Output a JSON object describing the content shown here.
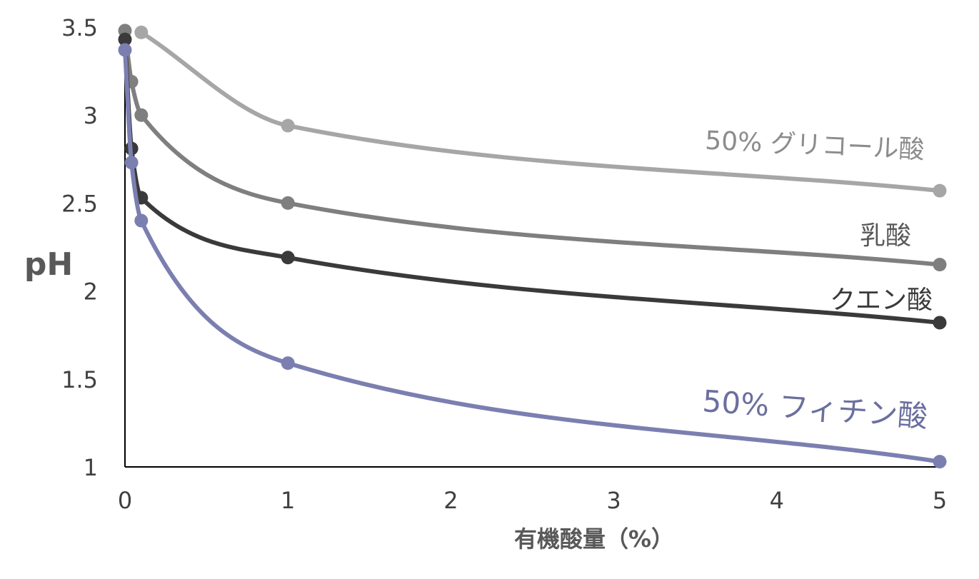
{
  "chart_data": {
    "type": "line",
    "title": "",
    "xlabel": "有機酸量（%）",
    "ylabel": "pH",
    "xlim": [
      0,
      5
    ],
    "ylim": [
      1,
      3.5
    ],
    "x_ticks": [
      "0",
      "1",
      "2",
      "3",
      "4",
      "5"
    ],
    "y_ticks": [
      "1",
      "1.5",
      "2",
      "2.5",
      "3",
      "3.5"
    ],
    "grid": false,
    "legend": "none",
    "series": [
      {
        "name": "50% グリコール酸",
        "color": "#a6a6a6",
        "x": [
          0.1,
          1,
          5
        ],
        "y": [
          3.47,
          2.94,
          2.57
        ]
      },
      {
        "name": "乳酸",
        "color": "#7f7f7f",
        "x": [
          0,
          0.04,
          0.1,
          1,
          5
        ],
        "y": [
          3.48,
          3.19,
          3.0,
          2.5,
          2.15
        ]
      },
      {
        "name": "クエン酸",
        "color": "#3a3a3a",
        "x": [
          0,
          0.04,
          0.1,
          1,
          5
        ],
        "y": [
          3.43,
          2.81,
          2.53,
          2.19,
          1.82
        ]
      },
      {
        "name": "50% フィチン酸",
        "color": "#7b7fb0",
        "x": [
          0,
          0.04,
          0.1,
          1,
          5
        ],
        "y": [
          3.37,
          2.73,
          2.4,
          1.59,
          1.03
        ]
      }
    ]
  }
}
